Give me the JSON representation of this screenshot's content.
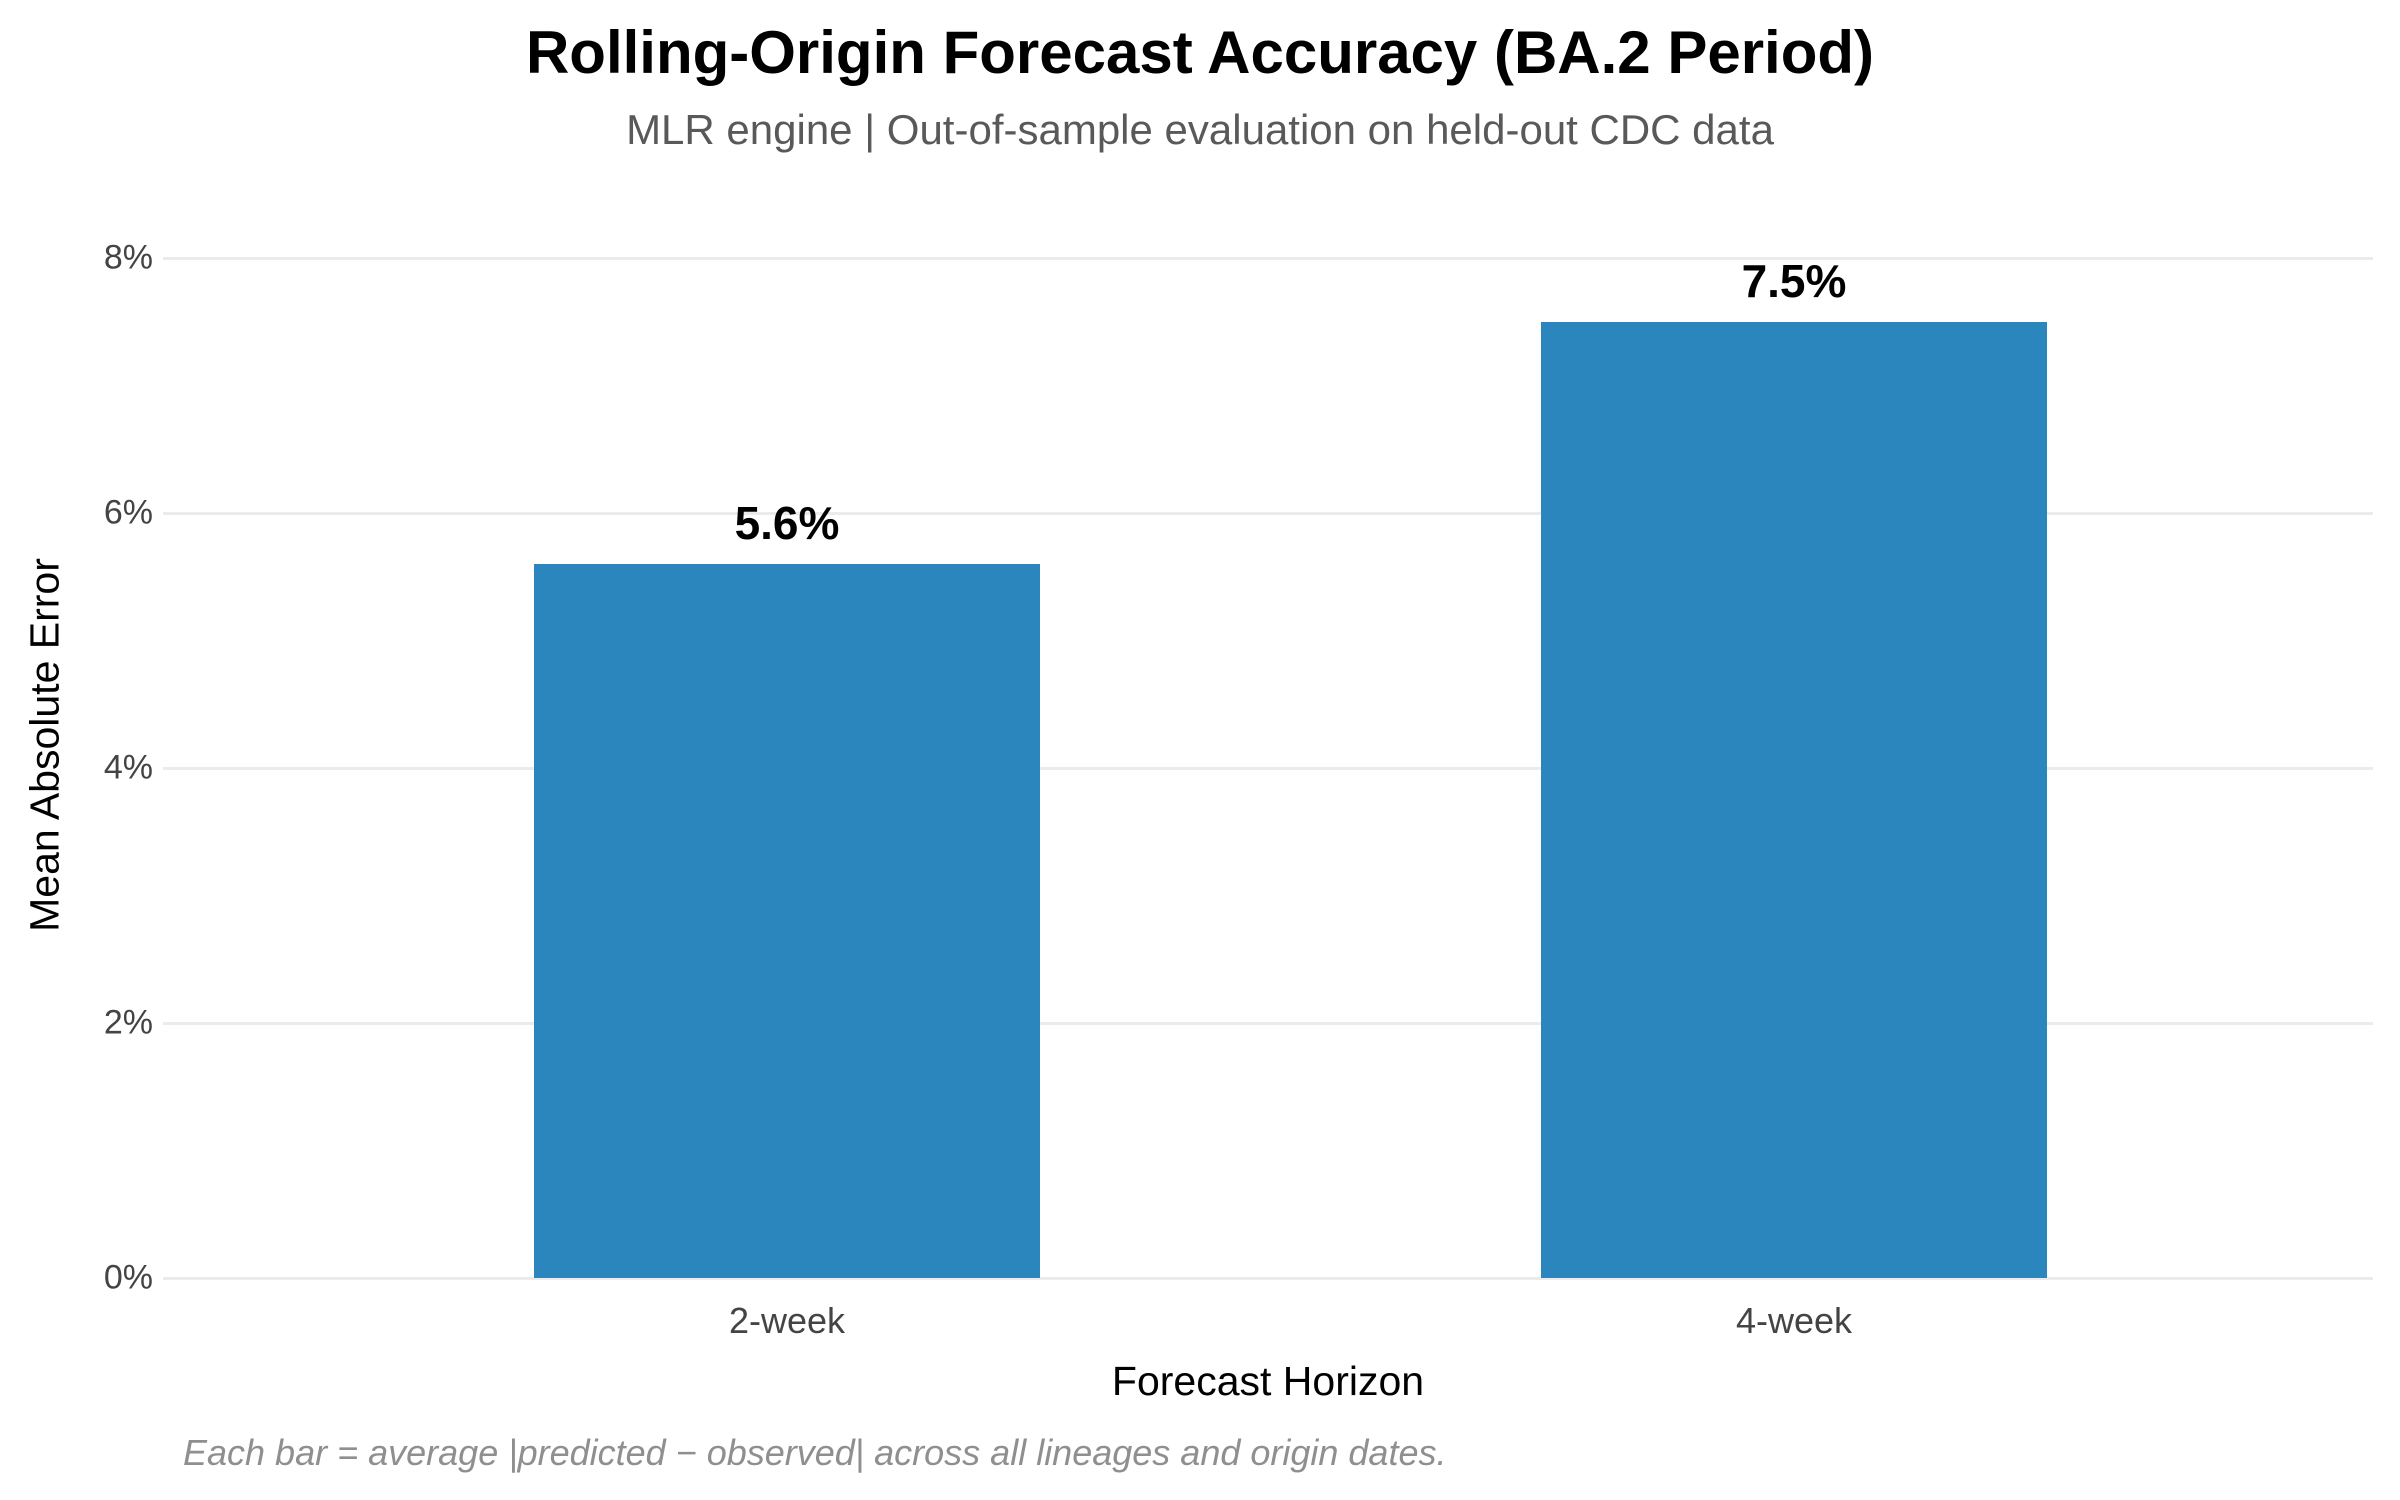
{
  "chart_data": {
    "type": "bar",
    "title": "Rolling-Origin Forecast Accuracy (BA.2 Period)",
    "subtitle": "MLR engine | Out-of-sample evaluation on held-out CDC data",
    "xlabel": "Forecast Horizon",
    "ylabel": "Mean Absolute Error",
    "caption": "Each bar = average |predicted − observed| across all lineages and origin dates.",
    "categories": [
      "2-week",
      "4-week"
    ],
    "values": [
      5.6,
      7.5
    ],
    "value_labels": [
      "5.6%",
      "7.5%"
    ],
    "ylim": [
      0,
      8
    ],
    "yticks": [
      0,
      2,
      4,
      6,
      8
    ],
    "ytick_labels": [
      "0%",
      "2%",
      "4%",
      "6%",
      "8%"
    ],
    "grid": "horizontal",
    "legend": "none",
    "colors": {
      "bar": "#2a86bd",
      "grid": "#ebebeb",
      "background": "#ffffff",
      "title": "#000000",
      "subtitle": "#595959",
      "tick_label": "#444444",
      "axis_label": "#000000",
      "value_label": "#000000",
      "caption": "#8f8f8f"
    }
  }
}
